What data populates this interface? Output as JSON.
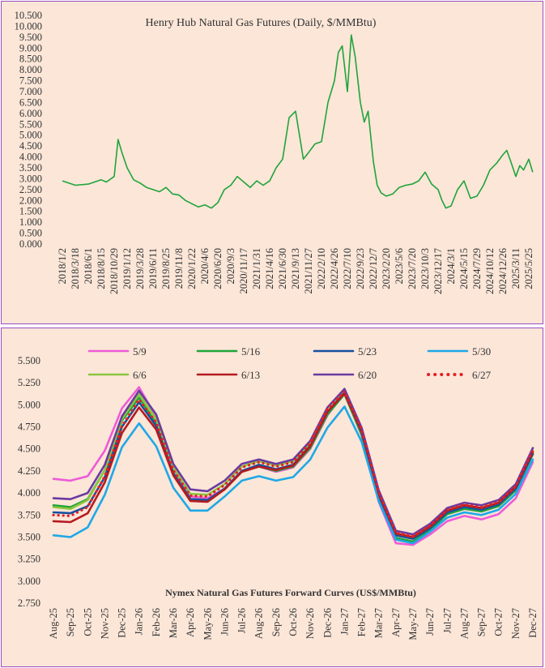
{
  "chart_data": [
    {
      "type": "line",
      "title": "Henry Hub Natural Gas Futures (Daily, $/MMBtu)",
      "xlabel": "",
      "ylabel": "",
      "ylim": [
        0,
        10.5
      ],
      "y_ticks": [
        "0.000",
        "0.500",
        "1.000",
        "1.500",
        "2.000",
        "2.500",
        "3.000",
        "3.500",
        "4.000",
        "4.500",
        "5.000",
        "5.500",
        "6.000",
        "6.500",
        "7.000",
        "7.500",
        "8.000",
        "8.500",
        "9.000",
        "9.500",
        "10.000",
        "10.500"
      ],
      "x_ticks": [
        "2018/1/2",
        "2018/3/18",
        "2018/6/1",
        "2018/8/15",
        "2018/10/29",
        "2019/1/12",
        "2019/3/28",
        "2019/6/11",
        "2019/8/25",
        "2019/11/8",
        "2020/1/22",
        "2020/4/6",
        "2020/6/20",
        "2020/9/3",
        "2020/11/17",
        "2021/1/31",
        "2021/4/16",
        "2021/6/30",
        "2021/9/13",
        "2021/11/27",
        "2022/2/10",
        "2022/4/26",
        "2022/7/10",
        "2022/9/23",
        "2022/12/7",
        "2023/2/20",
        "2023/5/6",
        "2023/7/20",
        "2023/10/3",
        "2023/12/17",
        "2024/3/1",
        "2024/5/15",
        "2024/7/29",
        "2024/10/12",
        "2024/12/26",
        "2025/3/11",
        "2025/5/25"
      ],
      "series": [
        {
          "color": "#1fa43a",
          "x_index": [
            0,
            1,
            2,
            3,
            3.4,
            4,
            4.3,
            4.6,
            5,
            5.5,
            6,
            6.5,
            7,
            7.5,
            8,
            8.5,
            9,
            9.5,
            10,
            10.5,
            11,
            11.5,
            12,
            12.5,
            13,
            13.5,
            14,
            14.5,
            15,
            15.5,
            16,
            16.5,
            17,
            17.5,
            18,
            18.3,
            18.6,
            19,
            19.5,
            20,
            20.5,
            21,
            21.3,
            21.6,
            22,
            22.3,
            22.6,
            23,
            23.3,
            23.6,
            24,
            24.3,
            24.6,
            25,
            25.5,
            26,
            26.5,
            27,
            27.5,
            28,
            28.5,
            29,
            29.3,
            29.6,
            30,
            30.5,
            31,
            31.5,
            32,
            32.5,
            33,
            33.5,
            34,
            34.3,
            34.6,
            35,
            35.3,
            35.6,
            36,
            36.3
          ],
          "values": [
            2.9,
            2.7,
            2.75,
            2.95,
            2.85,
            3.1,
            4.8,
            4.2,
            3.5,
            2.95,
            2.8,
            2.6,
            2.5,
            2.4,
            2.6,
            2.3,
            2.25,
            2.0,
            1.85,
            1.7,
            1.8,
            1.65,
            1.9,
            2.5,
            2.7,
            3.1,
            2.85,
            2.6,
            2.9,
            2.7,
            2.9,
            3.5,
            3.9,
            5.8,
            6.1,
            5.0,
            3.9,
            4.2,
            4.6,
            4.7,
            6.5,
            7.5,
            8.8,
            9.1,
            7.0,
            9.6,
            8.6,
            6.5,
            5.6,
            6.1,
            3.8,
            2.7,
            2.35,
            2.2,
            2.3,
            2.6,
            2.7,
            2.75,
            2.9,
            3.3,
            2.75,
            2.5,
            2.0,
            1.65,
            1.75,
            2.5,
            2.9,
            2.1,
            2.2,
            2.7,
            3.4,
            3.7,
            4.1,
            4.3,
            3.8,
            3.1,
            3.6,
            3.4,
            3.9,
            3.3
          ]
        }
      ]
    },
    {
      "type": "line",
      "title": "Nymex  Natural Gas Futures Forward  Curves (US$/MMBtu)",
      "xlabel": "",
      "ylabel": "",
      "ylim": [
        2.75,
        5.5
      ],
      "y_ticks": [
        "2.750",
        "3.000",
        "3.250",
        "3.500",
        "3.750",
        "4.000",
        "4.250",
        "4.500",
        "4.750",
        "5.000",
        "5.250",
        "5.500"
      ],
      "categories": [
        "Aug-25",
        "Sep-25",
        "Oct-25",
        "Nov-25",
        "Dec-25",
        "Jan-26",
        "Feb-26",
        "Mar-26",
        "Apr-26",
        "May-26",
        "Jun-26",
        "Jul-26",
        "Aug-26",
        "Sep-26",
        "Oct-26",
        "Nov-26",
        "Dec-26",
        "Jan-27",
        "Feb-27",
        "Mar-27",
        "Apr-27",
        "May-27",
        "Jun-27",
        "Jul-27",
        "Aug-27",
        "Sep-27",
        "Oct-27",
        "Nov-27",
        "Dec-27"
      ],
      "legend_placement": "top",
      "series": [
        {
          "name": "5/9",
          "color": "#ee5bd6",
          "style": "solid",
          "values": [
            4.16,
            4.14,
            4.19,
            4.48,
            4.96,
            5.2,
            4.86,
            4.28,
            3.96,
            3.94,
            4.05,
            4.25,
            4.3,
            4.24,
            4.29,
            4.5,
            4.88,
            5.14,
            4.65,
            3.9,
            3.43,
            3.41,
            3.53,
            3.68,
            3.74,
            3.7,
            3.76,
            3.94,
            4.35
          ]
        },
        {
          "name": "5/16",
          "color": "#1fa43a",
          "style": "solid",
          "values": [
            3.86,
            3.84,
            3.93,
            4.26,
            4.82,
            5.08,
            4.79,
            4.23,
            3.93,
            3.92,
            4.04,
            4.24,
            4.3,
            4.25,
            4.3,
            4.51,
            4.89,
            5.12,
            4.66,
            3.94,
            3.49,
            3.45,
            3.58,
            3.76,
            3.82,
            3.79,
            3.85,
            4.03,
            4.44
          ]
        },
        {
          "name": "5/23",
          "color": "#154f9e",
          "style": "solid",
          "values": [
            3.78,
            3.77,
            3.85,
            4.18,
            4.75,
            5.03,
            4.76,
            4.22,
            3.93,
            3.92,
            4.05,
            4.25,
            4.32,
            4.27,
            4.32,
            4.54,
            4.92,
            5.14,
            4.69,
            3.97,
            3.52,
            3.48,
            3.6,
            3.78,
            3.84,
            3.81,
            3.87,
            4.05,
            4.45
          ]
        },
        {
          "name": "5/30",
          "color": "#1ea8e6",
          "style": "solid",
          "values": [
            3.52,
            3.5,
            3.61,
            3.98,
            4.52,
            4.79,
            4.53,
            4.06,
            3.8,
            3.8,
            3.96,
            4.14,
            4.19,
            4.14,
            4.18,
            4.38,
            4.74,
            4.98,
            4.58,
            3.91,
            3.47,
            3.43,
            3.56,
            3.72,
            3.78,
            3.75,
            3.81,
            3.99,
            4.38
          ]
        },
        {
          "name": "6/6",
          "color": "#8cc63f",
          "style": "solid",
          "values": [
            3.84,
            3.82,
            3.92,
            4.26,
            4.84,
            5.12,
            4.84,
            4.29,
            3.99,
            3.98,
            4.1,
            4.3,
            4.36,
            4.31,
            4.36,
            4.57,
            4.96,
            5.18,
            4.72,
            4.0,
            3.54,
            3.5,
            3.62,
            3.8,
            3.86,
            3.83,
            3.89,
            4.07,
            4.48
          ]
        },
        {
          "name": "6/13",
          "color": "#b51a1f",
          "style": "solid",
          "values": [
            3.68,
            3.67,
            3.77,
            4.12,
            4.68,
            4.97,
            4.72,
            4.2,
            3.91,
            3.9,
            4.04,
            4.24,
            4.3,
            4.26,
            4.31,
            4.53,
            4.92,
            5.13,
            4.7,
            3.99,
            3.54,
            3.5,
            3.62,
            3.8,
            3.86,
            3.83,
            3.89,
            4.07,
            4.47
          ]
        },
        {
          "name": "6/20",
          "color": "#6b3aa0",
          "style": "solid",
          "values": [
            3.94,
            3.93,
            4.0,
            4.32,
            4.87,
            5.16,
            4.89,
            4.33,
            4.04,
            4.02,
            4.14,
            4.33,
            4.38,
            4.33,
            4.38,
            4.59,
            4.97,
            5.18,
            4.74,
            4.03,
            3.57,
            3.53,
            3.65,
            3.83,
            3.89,
            3.86,
            3.92,
            4.1,
            4.51
          ]
        },
        {
          "name": "6/27",
          "color": "#e32026",
          "style": "dotted",
          "values": [
            3.75,
            3.74,
            3.84,
            4.19,
            4.76,
            5.06,
            4.8,
            4.26,
            3.97,
            3.96,
            4.09,
            4.29,
            4.35,
            4.3,
            4.35,
            4.57,
            4.96,
            5.15,
            4.72,
            4.01,
            3.55,
            3.51,
            3.63,
            3.81,
            3.87,
            3.84,
            3.9,
            4.08,
            4.49
          ]
        }
      ]
    }
  ]
}
